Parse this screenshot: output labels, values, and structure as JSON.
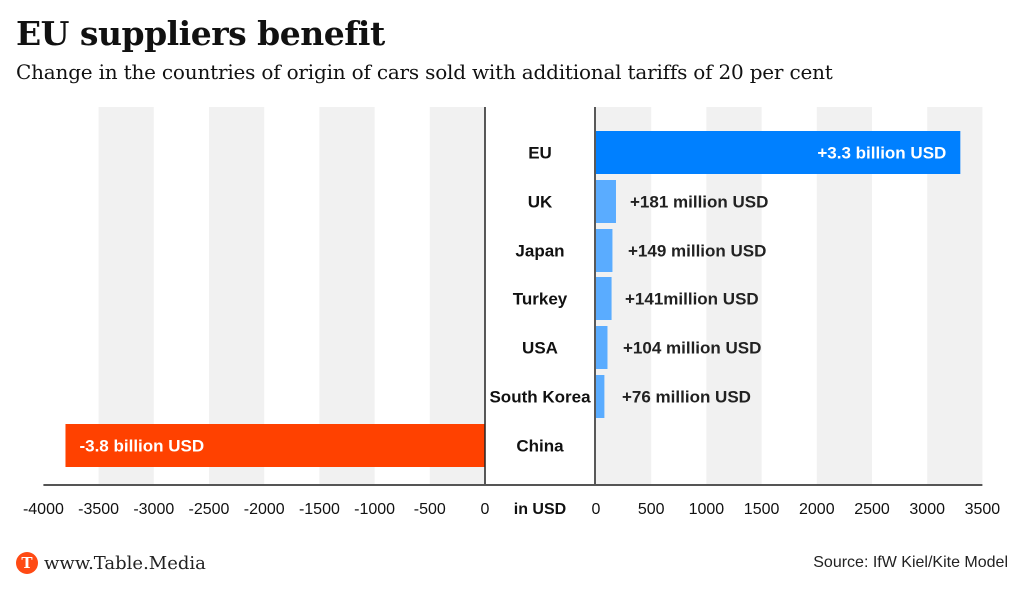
{
  "header": {
    "title": "EU suppliers benefit",
    "subtitle": "Change in the countries of origin of cars sold with additional tariffs of 20 per cent"
  },
  "footer": {
    "logo_letter": "T",
    "logo_text": "www.Table.Media",
    "source": "Source: IfW Kiel/Kite Model"
  },
  "colors": {
    "eu_bar": "#0080ff",
    "positive_bar": "#5aacff",
    "negative_bar": "#ff4100",
    "band": "#f1f1f1",
    "axis": "#555555",
    "zero_line": "#222222"
  },
  "chart_data": {
    "type": "bar",
    "orientation": "horizontal",
    "title": "EU suppliers benefit",
    "subtitle": "Change in the countries of origin of cars sold with additional tariffs of 20 per cent",
    "unit_label": "in USD",
    "unit": "million USD",
    "categories": [
      "EU",
      "UK",
      "Japan",
      "Turkey",
      "USA",
      "South Korea",
      "China"
    ],
    "values": [
      3300,
      181,
      149,
      141,
      104,
      76,
      -3800
    ],
    "data_labels": [
      "+3.3 billion USD",
      "+181 million USD",
      "+149 million USD",
      "+141million USD",
      "+104 million USD",
      "+76 million USD",
      "-3.8 billion USD"
    ],
    "negative_axis": {
      "range": [
        -4000,
        0
      ],
      "ticks": [
        "-4000",
        "-3500",
        "-3000",
        "-2500",
        "-2000",
        "-1500",
        "-1000",
        "-500",
        "0"
      ]
    },
    "positive_axis": {
      "range": [
        0,
        3500
      ],
      "ticks": [
        "0",
        "500",
        "1000",
        "1500",
        "2000",
        "2500",
        "3000",
        "3500"
      ]
    },
    "tick_step": 500,
    "grid": "alternating bands",
    "legend": "none"
  }
}
